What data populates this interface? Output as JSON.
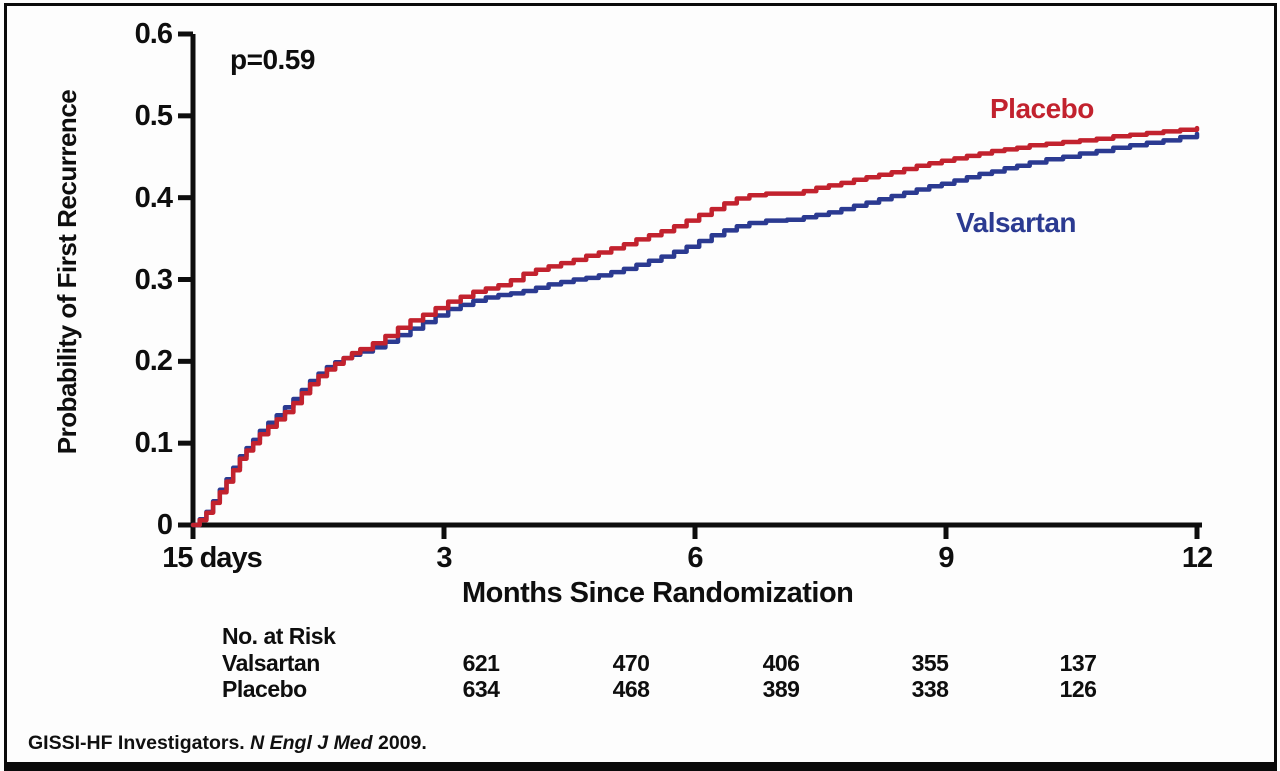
{
  "figure": {
    "p_value_label": "p=0.59",
    "y_axis_title": "Probability of First Recurrence",
    "x_axis_title": "Months Since Randomization"
  },
  "colors": {
    "placebo": "#c2222e",
    "valsartan": "#2b3a91",
    "axis": "#0e0e0e",
    "frame": "#0a0a0a"
  },
  "chart_data": {
    "type": "line",
    "subtype": "kaplan-meier-step",
    "title": "",
    "xlabel": "Months Since Randomization",
    "ylabel": "Probability of First Recurrence",
    "xlim": [
      0,
      12
    ],
    "ylim": [
      0,
      0.6
    ],
    "grid": false,
    "legend_position": "curve-end-labels",
    "annotations": [
      {
        "text": "p=0.59",
        "x_month": 0.5,
        "y_value": 0.56
      }
    ],
    "x_ticks": [
      {
        "value": 0,
        "label": "15 days"
      },
      {
        "value": 3,
        "label": "3"
      },
      {
        "value": 6,
        "label": "6"
      },
      {
        "value": 9,
        "label": "9"
      },
      {
        "value": 12,
        "label": "12"
      }
    ],
    "y_ticks": [
      {
        "value": 0.0,
        "label": "0"
      },
      {
        "value": 0.1,
        "label": "0.1"
      },
      {
        "value": 0.2,
        "label": "0.2"
      },
      {
        "value": 0.3,
        "label": "0.3"
      },
      {
        "value": 0.4,
        "label": "0.4"
      },
      {
        "value": 0.5,
        "label": "0.5"
      },
      {
        "value": 0.6,
        "label": "0.6"
      }
    ],
    "series": [
      {
        "name": "Valsartan",
        "color": "#2b3a91",
        "label_color": "#2b3a91",
        "points": [
          [
            0,
            0
          ],
          [
            0.08,
            0.007
          ],
          [
            0.16,
            0.016
          ],
          [
            0.24,
            0.029
          ],
          [
            0.32,
            0.043
          ],
          [
            0.4,
            0.056
          ],
          [
            0.48,
            0.07
          ],
          [
            0.56,
            0.084
          ],
          [
            0.64,
            0.094
          ],
          [
            0.72,
            0.104
          ],
          [
            0.8,
            0.115
          ],
          [
            0.9,
            0.125
          ],
          [
            1,
            0.134
          ],
          [
            1.1,
            0.144
          ],
          [
            1.2,
            0.154
          ],
          [
            1.3,
            0.165
          ],
          [
            1.4,
            0.176
          ],
          [
            1.5,
            0.185
          ],
          [
            1.6,
            0.193
          ],
          [
            1.7,
            0.199
          ],
          [
            1.8,
            0.204
          ],
          [
            1.9,
            0.208
          ],
          [
            2,
            0.212
          ],
          [
            2.15,
            0.217
          ],
          [
            2.3,
            0.224
          ],
          [
            2.45,
            0.232
          ],
          [
            2.6,
            0.24
          ],
          [
            2.75,
            0.248
          ],
          [
            2.9,
            0.256
          ],
          [
            3.05,
            0.264
          ],
          [
            3.2,
            0.269
          ],
          [
            3.35,
            0.274
          ],
          [
            3.5,
            0.278
          ],
          [
            3.65,
            0.281
          ],
          [
            3.8,
            0.283
          ],
          [
            3.95,
            0.286
          ],
          [
            4.1,
            0.29
          ],
          [
            4.25,
            0.294
          ],
          [
            4.4,
            0.297
          ],
          [
            4.55,
            0.3
          ],
          [
            4.7,
            0.302
          ],
          [
            4.85,
            0.305
          ],
          [
            5,
            0.309
          ],
          [
            5.15,
            0.313
          ],
          [
            5.3,
            0.318
          ],
          [
            5.45,
            0.323
          ],
          [
            5.6,
            0.328
          ],
          [
            5.75,
            0.334
          ],
          [
            5.9,
            0.34
          ],
          [
            6.05,
            0.347
          ],
          [
            6.2,
            0.354
          ],
          [
            6.35,
            0.36
          ],
          [
            6.5,
            0.365
          ],
          [
            6.65,
            0.369
          ],
          [
            6.85,
            0.372
          ],
          [
            7.1,
            0.373
          ],
          [
            7.3,
            0.376
          ],
          [
            7.45,
            0.379
          ],
          [
            7.6,
            0.382
          ],
          [
            7.75,
            0.386
          ],
          [
            7.9,
            0.39
          ],
          [
            8.05,
            0.394
          ],
          [
            8.2,
            0.398
          ],
          [
            8.35,
            0.402
          ],
          [
            8.5,
            0.406
          ],
          [
            8.65,
            0.41
          ],
          [
            8.8,
            0.414
          ],
          [
            8.95,
            0.417
          ],
          [
            9.1,
            0.421
          ],
          [
            9.25,
            0.425
          ],
          [
            9.4,
            0.429
          ],
          [
            9.55,
            0.432
          ],
          [
            9.7,
            0.436
          ],
          [
            9.85,
            0.439
          ],
          [
            10,
            0.443
          ],
          [
            10.2,
            0.447
          ],
          [
            10.4,
            0.45
          ],
          [
            10.6,
            0.454
          ],
          [
            10.8,
            0.457
          ],
          [
            11,
            0.461
          ],
          [
            11.2,
            0.464
          ],
          [
            11.4,
            0.467
          ],
          [
            11.6,
            0.47
          ],
          [
            11.8,
            0.474
          ],
          [
            12,
            0.478
          ]
        ]
      },
      {
        "name": "Placebo",
        "color": "#c2222e",
        "label_color": "#c2222e",
        "points": [
          [
            0,
            0
          ],
          [
            0.08,
            0.006
          ],
          [
            0.16,
            0.015
          ],
          [
            0.24,
            0.027
          ],
          [
            0.32,
            0.04
          ],
          [
            0.4,
            0.053
          ],
          [
            0.48,
            0.067
          ],
          [
            0.56,
            0.081
          ],
          [
            0.64,
            0.091
          ],
          [
            0.72,
            0.1
          ],
          [
            0.8,
            0.111
          ],
          [
            0.9,
            0.12
          ],
          [
            1,
            0.129
          ],
          [
            1.1,
            0.138
          ],
          [
            1.2,
            0.149
          ],
          [
            1.3,
            0.161
          ],
          [
            1.4,
            0.172
          ],
          [
            1.5,
            0.182
          ],
          [
            1.6,
            0.19
          ],
          [
            1.7,
            0.197
          ],
          [
            1.8,
            0.204
          ],
          [
            1.9,
            0.21
          ],
          [
            2,
            0.215
          ],
          [
            2.15,
            0.222
          ],
          [
            2.3,
            0.231
          ],
          [
            2.45,
            0.241
          ],
          [
            2.6,
            0.25
          ],
          [
            2.75,
            0.257
          ],
          [
            2.9,
            0.265
          ],
          [
            3.05,
            0.273
          ],
          [
            3.2,
            0.279
          ],
          [
            3.35,
            0.285
          ],
          [
            3.5,
            0.289
          ],
          [
            3.65,
            0.293
          ],
          [
            3.8,
            0.299
          ],
          [
            3.95,
            0.307
          ],
          [
            4.1,
            0.312
          ],
          [
            4.25,
            0.316
          ],
          [
            4.4,
            0.32
          ],
          [
            4.55,
            0.324
          ],
          [
            4.7,
            0.329
          ],
          [
            4.85,
            0.333
          ],
          [
            5,
            0.338
          ],
          [
            5.15,
            0.343
          ],
          [
            5.3,
            0.349
          ],
          [
            5.45,
            0.354
          ],
          [
            5.6,
            0.359
          ],
          [
            5.75,
            0.365
          ],
          [
            5.9,
            0.372
          ],
          [
            6.05,
            0.379
          ],
          [
            6.2,
            0.386
          ],
          [
            6.35,
            0.393
          ],
          [
            6.5,
            0.399
          ],
          [
            6.65,
            0.403
          ],
          [
            6.85,
            0.405
          ],
          [
            7.1,
            0.405
          ],
          [
            7.3,
            0.408
          ],
          [
            7.45,
            0.412
          ],
          [
            7.6,
            0.415
          ],
          [
            7.75,
            0.418
          ],
          [
            7.9,
            0.422
          ],
          [
            8.05,
            0.425
          ],
          [
            8.2,
            0.428
          ],
          [
            8.35,
            0.431
          ],
          [
            8.5,
            0.435
          ],
          [
            8.65,
            0.439
          ],
          [
            8.8,
            0.442
          ],
          [
            8.95,
            0.445
          ],
          [
            9.1,
            0.448
          ],
          [
            9.25,
            0.451
          ],
          [
            9.4,
            0.454
          ],
          [
            9.55,
            0.457
          ],
          [
            9.7,
            0.459
          ],
          [
            9.85,
            0.461
          ],
          [
            10,
            0.464
          ],
          [
            10.2,
            0.466
          ],
          [
            10.4,
            0.468
          ],
          [
            10.6,
            0.47
          ],
          [
            10.8,
            0.472
          ],
          [
            11,
            0.475
          ],
          [
            11.2,
            0.477
          ],
          [
            11.4,
            0.479
          ],
          [
            11.6,
            0.481
          ],
          [
            11.8,
            0.483
          ],
          [
            12,
            0.485
          ]
        ]
      }
    ],
    "curve_end_labels": [
      {
        "text": "Placebo",
        "color": "#c2222e"
      },
      {
        "text": "Valsartan",
        "color": "#2b3a91"
      }
    ]
  },
  "risk_table": {
    "title": "No. at Risk",
    "rows": [
      {
        "label": "Valsartan",
        "values": [
          "621",
          "470",
          "406",
          "355",
          "137"
        ]
      },
      {
        "label": "Placebo",
        "values": [
          "634",
          "468",
          "389",
          "338",
          "126"
        ]
      }
    ]
  },
  "citation": {
    "prefix": "GISSI-HF Investigators. ",
    "journal_italic": "N Engl J Med",
    "suffix": " 2009."
  }
}
